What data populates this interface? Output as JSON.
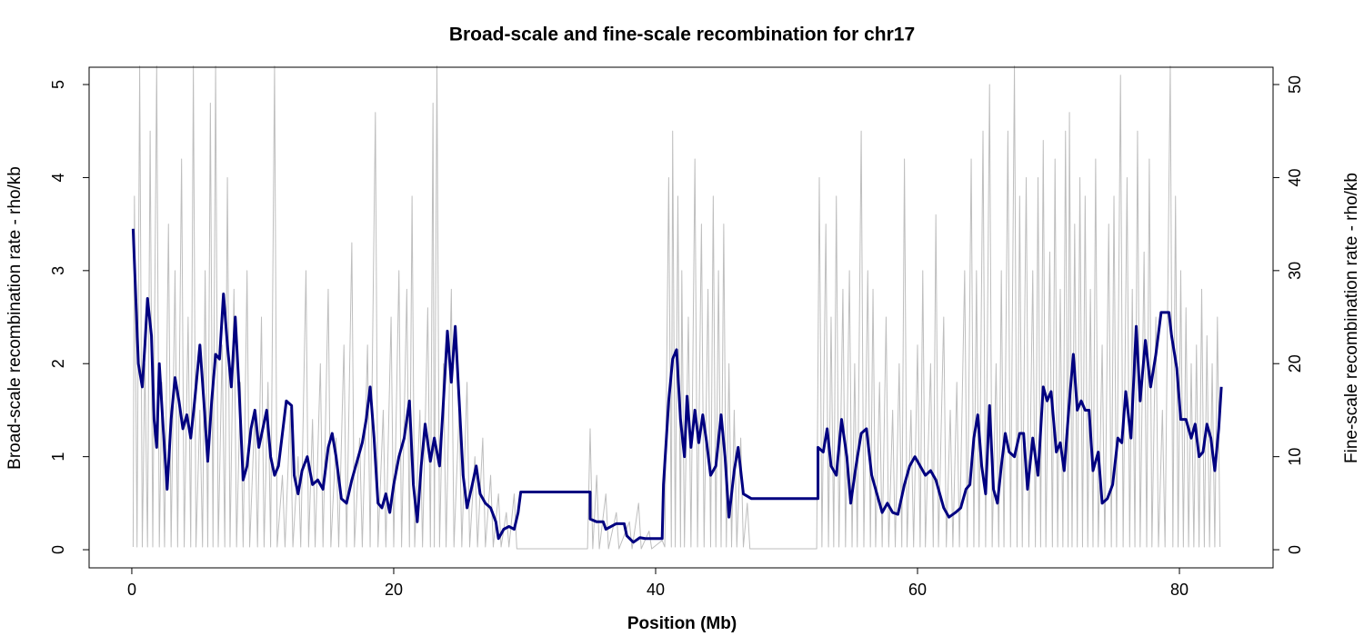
{
  "chart_data": {
    "type": "line",
    "title": "Broad-scale and fine-scale recombination for chr17",
    "xlabel": "Position (Mb)",
    "ylabel": "Broad-scale recombination rate - rho/kb",
    "y2label": "Fine-scale recombination rate - rho/kb",
    "xlim": [
      -3.26,
      87.15
    ],
    "ylim": [
      -0.195,
      5.186
    ],
    "y2lim": [
      -1.95,
      51.86
    ],
    "xticks": [
      0,
      20,
      40,
      60,
      80
    ],
    "yticks": [
      0,
      1,
      2,
      3,
      4,
      5
    ],
    "y2ticks": [
      0,
      10,
      20,
      30,
      40,
      50
    ],
    "series": [
      {
        "color": "#bebebe",
        "axis": "y2",
        "x": [
          0.1,
          0.2,
          0.4,
          0.6,
          0.8,
          1.0,
          1.2,
          1.4,
          1.6,
          1.9,
          2.1,
          2.3,
          2.5,
          2.8,
          3.0,
          3.3,
          3.5,
          3.8,
          4.0,
          4.3,
          4.5,
          4.7,
          4.9,
          5.2,
          5.4,
          5.6,
          5.8,
          6.0,
          6.2,
          6.4,
          6.6,
          6.9,
          7.1,
          7.3,
          7.5,
          7.8,
          8.0,
          8.3,
          8.5,
          8.8,
          9.0,
          9.4,
          9.6,
          9.9,
          10.1,
          10.4,
          10.6,
          10.9,
          11.1,
          11.5,
          11.7,
          12.1,
          12.3,
          12.7,
          12.9,
          13.3,
          13.5,
          13.8,
          14.0,
          14.4,
          14.6,
          15.0,
          15.2,
          15.6,
          15.8,
          16.2,
          16.4,
          16.8,
          17.0,
          17.4,
          17.6,
          18.0,
          18.2,
          18.6,
          18.8,
          19.2,
          19.4,
          19.8,
          20.0,
          20.4,
          20.6,
          21.0,
          21.2,
          21.4,
          21.6,
          22.0,
          22.2,
          22.6,
          22.8,
          23.0,
          23.1,
          23.3,
          23.5,
          23.8,
          24.0,
          24.4,
          24.6,
          25.0,
          25.2,
          25.6,
          25.8,
          26.2,
          26.4,
          26.8,
          27.0,
          27.4,
          27.6,
          28.0,
          28.2,
          28.6,
          28.8,
          29.2,
          29.4,
          34.8,
          35.0,
          35.2,
          35.5,
          35.7,
          36.2,
          36.4,
          37.0,
          37.2,
          38.0,
          38.2,
          38.7,
          38.9,
          39.5,
          39.7,
          40.5,
          40.7,
          41.0,
          41.2,
          41.3,
          41.5,
          41.7,
          41.9,
          42.0,
          42.2,
          42.5,
          42.7,
          43.0,
          43.2,
          43.5,
          43.7,
          44.0,
          44.2,
          44.4,
          44.6,
          44.8,
          45.0,
          45.2,
          45.4,
          45.6,
          45.8,
          46.0,
          46.2,
          46.5,
          46.7,
          47.0,
          47.2,
          52.3,
          52.5,
          52.7,
          53.0,
          53.2,
          53.4,
          53.6,
          53.8,
          54.0,
          54.3,
          54.5,
          54.8,
          55.0,
          55.2,
          55.4,
          55.7,
          55.9,
          56.2,
          56.4,
          56.6,
          56.8,
          57.1,
          57.3,
          57.6,
          57.8,
          58.1,
          58.3,
          58.6,
          58.8,
          59.0,
          59.2,
          59.5,
          59.7,
          60.0,
          60.2,
          60.4,
          60.6,
          61.0,
          61.2,
          61.4,
          61.6,
          62.0,
          62.2,
          62.5,
          62.7,
          63.0,
          63.2,
          63.6,
          63.8,
          64.1,
          64.3,
          64.5,
          64.7,
          65.0,
          65.2,
          65.5,
          65.7,
          66.0,
          66.2,
          66.4,
          66.6,
          66.9,
          67.1,
          67.4,
          67.6,
          67.8,
          68.0,
          68.3,
          68.5,
          68.8,
          69.0,
          69.2,
          69.4,
          69.6,
          69.8,
          70.1,
          70.3,
          70.5,
          70.7,
          70.9,
          71.1,
          71.3,
          71.5,
          71.6,
          71.8,
          72.0,
          72.2,
          72.4,
          72.6,
          72.8,
          73.0,
          73.2,
          73.4,
          73.6,
          73.8,
          74.1,
          74.3,
          74.6,
          74.8,
          75.0,
          75.2,
          75.5,
          75.7,
          76.0,
          76.2,
          76.4,
          76.6,
          76.8,
          77.0,
          77.3,
          77.5,
          77.7,
          77.9,
          78.2,
          78.4,
          78.7,
          78.9,
          79.3,
          79.5,
          79.7,
          79.9,
          80.1,
          80.3,
          80.5,
          80.7,
          80.9,
          81.1,
          81.3,
          81.5,
          81.7,
          81.9,
          82.1,
          82.3,
          82.5,
          82.7,
          82.9,
          83.1
        ],
        "values": [
          0.3,
          38,
          0.3,
          52,
          0.3,
          20,
          0.3,
          45,
          0.3,
          52,
          0.3,
          18,
          0.3,
          35,
          0.3,
          30,
          0.3,
          42,
          0.3,
          25,
          0.3,
          52,
          0.3,
          15,
          0.3,
          30,
          0.3,
          48,
          0.3,
          52,
          0.3,
          22,
          0.3,
          40,
          0.3,
          28,
          0.3,
          18,
          0.3,
          30,
          0.3,
          15,
          0.3,
          25,
          0.3,
          18,
          0.3,
          52,
          0.3,
          8,
          0.3,
          15,
          0.3,
          10,
          0.3,
          30,
          0.3,
          14,
          0.3,
          20,
          0.3,
          28,
          0.3,
          12,
          0.3,
          22,
          0.3,
          33,
          0.3,
          12,
          0.3,
          22,
          0.3,
          47,
          0.3,
          15,
          0.3,
          25,
          0.3,
          30,
          0.3,
          28,
          0.3,
          38,
          0.3,
          15,
          0.3,
          26,
          0.3,
          48,
          0.3,
          52,
          0.3,
          20,
          0.3,
          28,
          0.3,
          15,
          0.3,
          18,
          0.3,
          10,
          0.3,
          12,
          0.3,
          8,
          0.3,
          6,
          0.3,
          4,
          0.3,
          6,
          0.1,
          0.1,
          13,
          0.1,
          8,
          0.1,
          6,
          0.1,
          4,
          0.1,
          3,
          0.1,
          5,
          0.1,
          2,
          0.1,
          1,
          0.3,
          40,
          0.3,
          45,
          0.3,
          38,
          0.3,
          30,
          0.3,
          25,
          0.3,
          42,
          0.3,
          35,
          0.3,
          28,
          0.3,
          38,
          0.3,
          30,
          0.3,
          35,
          0.3,
          20,
          0.3,
          15,
          0.3,
          12,
          0.3,
          5,
          0.1,
          0.1,
          40,
          0.3,
          35,
          0.3,
          25,
          0.3,
          38,
          0.3,
          28,
          0.3,
          30,
          0.3,
          20,
          0.3,
          45,
          0.3,
          30,
          0.3,
          28,
          0.3,
          18,
          0.3,
          25,
          0.3,
          15,
          0.3,
          20,
          0.3,
          42,
          0.3,
          15,
          0.3,
          22,
          0.3,
          30,
          0.3,
          20,
          0.3,
          36,
          0.3,
          25,
          0.3,
          15,
          0.3,
          18,
          0.3,
          30,
          0.3,
          42,
          0.3,
          30,
          0.3,
          45,
          0.3,
          50,
          0.3,
          20,
          0.3,
          30,
          0.3,
          45,
          0.3,
          52,
          0.3,
          38,
          0.3,
          40,
          0.3,
          30,
          0.3,
          40,
          0.3,
          44,
          0.3,
          32,
          0.3,
          42,
          0.3,
          28,
          0.3,
          45,
          0.3,
          47,
          0.3,
          35,
          0.3,
          40,
          0.3,
          38,
          0.3,
          28,
          0.3,
          42,
          0.3,
          22,
          0.3,
          35,
          0.3,
          38,
          0.3,
          51,
          0.3,
          40,
          0.3,
          28,
          0.3,
          45,
          0.3,
          32,
          0.3,
          42,
          0.3,
          25,
          0.3,
          15,
          0.3,
          52,
          0.3,
          38,
          0.3,
          30,
          0.3,
          26,
          0.3,
          20,
          0.3,
          22,
          0.3,
          28,
          0.3,
          23,
          0.3,
          20,
          0.3,
          25,
          0.3
        ]
      },
      {
        "color": "#000080",
        "x": [
          0.1,
          0.5,
          0.8,
          1.0,
          1.2,
          1.5,
          1.7,
          1.9,
          2.1,
          2.4,
          2.7,
          3.0,
          3.3,
          3.6,
          3.9,
          4.2,
          4.5,
          4.8,
          5.2,
          5.5,
          5.8,
          6.1,
          6.4,
          6.7,
          7.0,
          7.3,
          7.6,
          7.9,
          8.2,
          8.5,
          8.8,
          9.1,
          9.4,
          9.7,
          10.0,
          10.3,
          10.6,
          10.9,
          11.2,
          11.5,
          11.8,
          12.2,
          12.4,
          12.7,
          13.0,
          13.4,
          13.8,
          14.2,
          14.6,
          15.0,
          15.3,
          15.6,
          16.0,
          16.4,
          16.8,
          17.2,
          17.6,
          17.9,
          18.2,
          18.5,
          18.8,
          19.1,
          19.4,
          19.7,
          20.0,
          20.4,
          20.8,
          21.2,
          21.5,
          21.8,
          22.1,
          22.4,
          22.8,
          23.1,
          23.5,
          23.8,
          24.1,
          24.4,
          24.7,
          25.0,
          25.3,
          25.6,
          26.0,
          26.3,
          26.6,
          27.0,
          27.4,
          27.8,
          28.0,
          28.4,
          28.8,
          29.2,
          29.5,
          29.7,
          35.0,
          35.0,
          35.5,
          36.0,
          36.2,
          36.6,
          37.0,
          37.6,
          37.8,
          38.3,
          38.8,
          39.2,
          40.5,
          40.6,
          41.0,
          41.3,
          41.6,
          41.9,
          42.2,
          42.4,
          42.7,
          43.0,
          43.3,
          43.6,
          43.9,
          44.2,
          44.6,
          45.0,
          45.3,
          45.6,
          46.0,
          46.3,
          46.7,
          47.3,
          52.4,
          52.4,
          52.8,
          53.1,
          53.4,
          53.8,
          54.2,
          54.6,
          54.9,
          55.3,
          55.7,
          56.1,
          56.5,
          56.9,
          57.3,
          57.7,
          58.1,
          58.5,
          59.0,
          59.4,
          59.8,
          60.2,
          60.6,
          61.0,
          61.4,
          62.0,
          62.4,
          62.9,
          63.3,
          63.7,
          64.0,
          64.3,
          64.6,
          64.9,
          65.2,
          65.5,
          65.8,
          66.1,
          66.4,
          66.7,
          67.0,
          67.4,
          67.8,
          68.1,
          68.4,
          68.8,
          69.2,
          69.6,
          69.9,
          70.2,
          70.6,
          70.9,
          71.2,
          71.6,
          71.9,
          72.2,
          72.5,
          72.8,
          73.1,
          73.4,
          73.8,
          74.1,
          74.5,
          74.9,
          75.3,
          75.6,
          75.9,
          76.3,
          76.7,
          77.0,
          77.4,
          77.8,
          78.2,
          78.6,
          79.2,
          79.4,
          79.8,
          80.1,
          80.5,
          80.9,
          81.2,
          81.5,
          81.8,
          82.1,
          82.4,
          82.7,
          83.0,
          83.2
        ],
        "values": [
          3.45,
          2.0,
          1.75,
          2.2,
          2.7,
          2.3,
          1.4,
          1.1,
          2.0,
          1.3,
          0.65,
          1.4,
          1.85,
          1.6,
          1.3,
          1.45,
          1.2,
          1.6,
          2.2,
          1.6,
          0.95,
          1.6,
          2.1,
          2.05,
          2.75,
          2.2,
          1.75,
          2.5,
          1.7,
          0.75,
          0.9,
          1.3,
          1.5,
          1.1,
          1.3,
          1.5,
          1.0,
          0.8,
          0.9,
          1.25,
          1.6,
          1.55,
          0.8,
          0.6,
          0.85,
          1.0,
          0.7,
          0.75,
          0.65,
          1.1,
          1.25,
          1.0,
          0.55,
          0.5,
          0.75,
          0.95,
          1.15,
          1.4,
          1.75,
          1.2,
          0.5,
          0.45,
          0.6,
          0.4,
          0.7,
          1.0,
          1.2,
          1.6,
          0.7,
          0.3,
          0.9,
          1.35,
          0.95,
          1.2,
          0.9,
          1.6,
          2.35,
          1.8,
          2.4,
          1.6,
          0.8,
          0.45,
          0.7,
          0.9,
          0.6,
          0.5,
          0.45,
          0.3,
          0.12,
          0.22,
          0.25,
          0.22,
          0.4,
          0.62,
          0.62,
          0.33,
          0.3,
          0.3,
          0.22,
          0.25,
          0.28,
          0.28,
          0.15,
          0.08,
          0.13,
          0.12,
          0.12,
          0.7,
          1.6,
          2.05,
          2.15,
          1.4,
          1.0,
          1.65,
          1.1,
          1.5,
          1.15,
          1.45,
          1.15,
          0.8,
          0.9,
          1.45,
          1.0,
          0.35,
          0.85,
          1.1,
          0.6,
          0.55,
          0.55,
          1.1,
          1.05,
          1.3,
          0.9,
          0.8,
          1.4,
          1.0,
          0.5,
          0.9,
          1.25,
          1.3,
          0.8,
          0.6,
          0.4,
          0.5,
          0.4,
          0.38,
          0.7,
          0.9,
          1.0,
          0.9,
          0.8,
          0.85,
          0.75,
          0.45,
          0.35,
          0.4,
          0.45,
          0.65,
          0.7,
          1.2,
          1.45,
          0.9,
          0.6,
          1.55,
          0.65,
          0.5,
          0.9,
          1.25,
          1.05,
          1.0,
          1.25,
          1.25,
          0.65,
          1.2,
          0.8,
          1.75,
          1.6,
          1.7,
          1.05,
          1.15,
          0.85,
          1.6,
          2.1,
          1.5,
          1.6,
          1.5,
          1.5,
          0.85,
          1.05,
          0.5,
          0.55,
          0.7,
          1.2,
          1.15,
          1.7,
          1.2,
          2.4,
          1.6,
          2.25,
          1.75,
          2.1,
          2.55,
          2.55,
          2.3,
          1.95,
          1.4,
          1.4,
          1.2,
          1.35,
          1.0,
          1.05,
          1.35,
          1.2,
          0.85,
          1.3,
          1.75
        ]
      }
    ]
  }
}
